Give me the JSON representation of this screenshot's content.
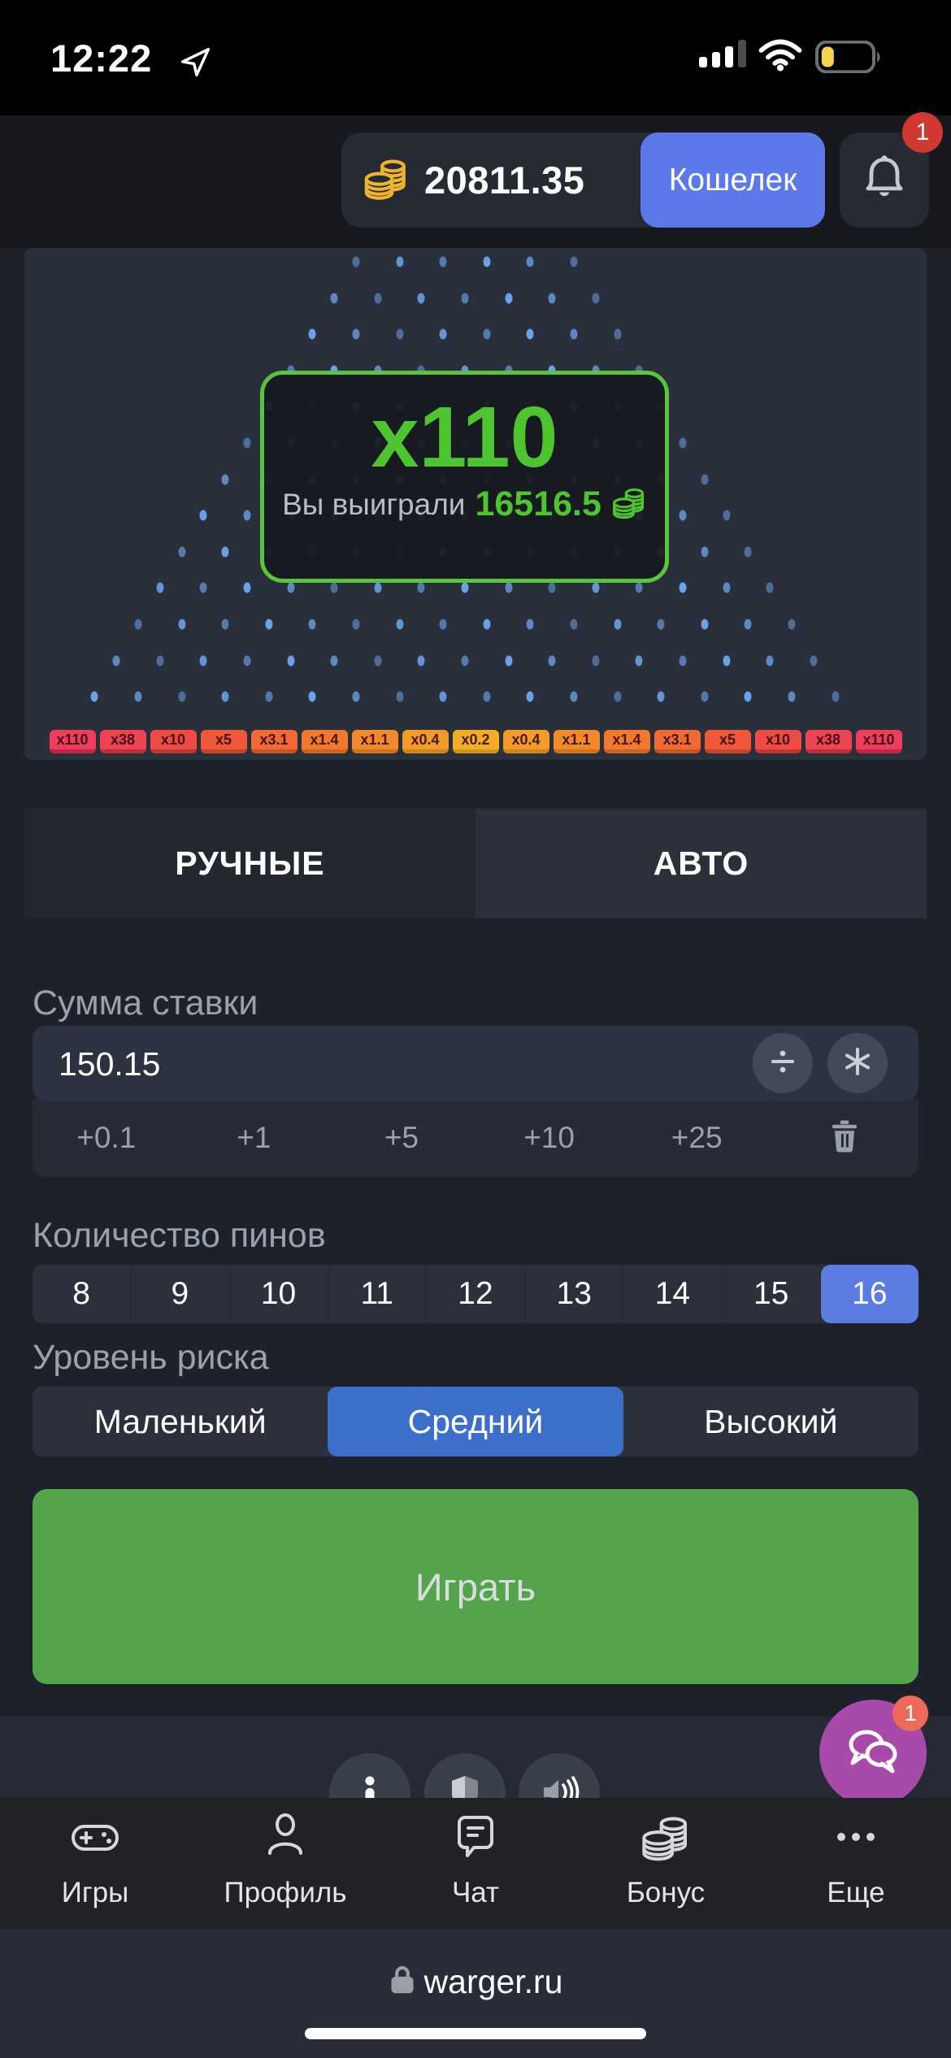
{
  "status_bar": {
    "time": "12:22"
  },
  "header": {
    "balance": "20811.35",
    "wallet_button": "Кошелек",
    "notification_badge": "1",
    "colors": {
      "wallet_blue": "#5b79e8",
      "badge_red": "#cf3932",
      "coin_gold": "#eeb42d"
    }
  },
  "board": {
    "win_overlay": {
      "multiplier": "x110",
      "message": "Вы выиграли",
      "amount": "16516.5",
      "accent_green": "#4fc431",
      "border_green": "#58c53c"
    },
    "pegs": {
      "rows": 13,
      "first_row_dots": 6,
      "last_row_dots": 18,
      "dot_color": "#6ba1e8"
    },
    "multipliers": [
      {
        "label": "x110",
        "bg": "#ee3e5b",
        "edge": "#c22647"
      },
      {
        "label": "x38",
        "bg": "#ee4350",
        "edge": "#bf2e3d"
      },
      {
        "label": "x10",
        "bg": "#ef4a43",
        "edge": "#c23631"
      },
      {
        "label": "x5",
        "bg": "#f0583a",
        "edge": "#c64427"
      },
      {
        "label": "x3.1",
        "bg": "#f16933",
        "edge": "#c95423"
      },
      {
        "label": "x1.4",
        "bg": "#f1792e",
        "edge": "#cb631e"
      },
      {
        "label": "x1.1",
        "bg": "#f2892b",
        "edge": "#ce721b"
      },
      {
        "label": "x0.4",
        "bg": "#f39b28",
        "edge": "#d18418"
      },
      {
        "label": "x0.2",
        "bg": "#f3ac26",
        "edge": "#d49514"
      },
      {
        "label": "x0.4",
        "bg": "#f39b28",
        "edge": "#d18418"
      },
      {
        "label": "x1.1",
        "bg": "#f2892b",
        "edge": "#ce721b"
      },
      {
        "label": "x1.4",
        "bg": "#f1792e",
        "edge": "#cb631e"
      },
      {
        "label": "x3.1",
        "bg": "#f16933",
        "edge": "#c95423"
      },
      {
        "label": "x5",
        "bg": "#f0583a",
        "edge": "#c64427"
      },
      {
        "label": "x10",
        "bg": "#ef4a43",
        "edge": "#c23631"
      },
      {
        "label": "x38",
        "bg": "#ee4350",
        "edge": "#bf2e3d"
      },
      {
        "label": "x110",
        "bg": "#ee3e5b",
        "edge": "#c22647"
      }
    ]
  },
  "tabs": {
    "manual": "РУЧНЫЕ",
    "auto": "АВТО"
  },
  "bet": {
    "label": "Сумма ставки",
    "value": "150.15",
    "quick_add": [
      "+0.1",
      "+1",
      "+5",
      "+10",
      "+25"
    ]
  },
  "pins": {
    "label": "Количество пинов",
    "options": [
      {
        "label": "8"
      },
      {
        "label": "9"
      },
      {
        "label": "10"
      },
      {
        "label": "11"
      },
      {
        "label": "12"
      },
      {
        "label": "13"
      },
      {
        "label": "14"
      },
      {
        "label": "15"
      },
      {
        "label": "16",
        "selected": true
      }
    ],
    "selected_blue": "#5b7ce0"
  },
  "risk": {
    "label": "Уровень риска",
    "options": [
      {
        "label": "Маленький"
      },
      {
        "label": "Средний",
        "selected": true
      },
      {
        "label": "Высокий"
      }
    ],
    "selected_blue": "#3b6fca"
  },
  "play_button": "Играть",
  "play_green": "#55a34b",
  "chat": {
    "badge": "1",
    "fab_purple": "#a74aa9"
  },
  "nav": {
    "items": [
      {
        "label": "Игры"
      },
      {
        "label": "Профиль"
      },
      {
        "label": "Чат"
      },
      {
        "label": "Бонус"
      },
      {
        "label": "Еще"
      }
    ]
  },
  "browser": {
    "url": "warger.ru"
  }
}
